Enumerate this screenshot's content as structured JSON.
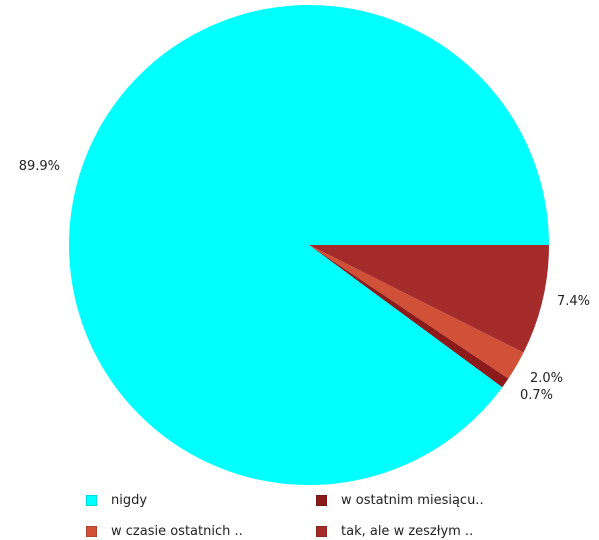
{
  "chart_data": {
    "type": "pie",
    "categories": [
      "nigdy",
      "w ostatnim miesiącu..",
      "w czasie ostatnich ..",
      "tak, ale w zeszłym .."
    ],
    "values": [
      89.9,
      0.7,
      2.0,
      7.4
    ],
    "value_labels": [
      "89.9%",
      "0.7%",
      "2.0%",
      "7.4%"
    ],
    "colors": [
      "#00ffff",
      "#8b1a1a",
      "#d05038",
      "#a52a2a"
    ],
    "legend_position": "bottom",
    "title": ""
  }
}
